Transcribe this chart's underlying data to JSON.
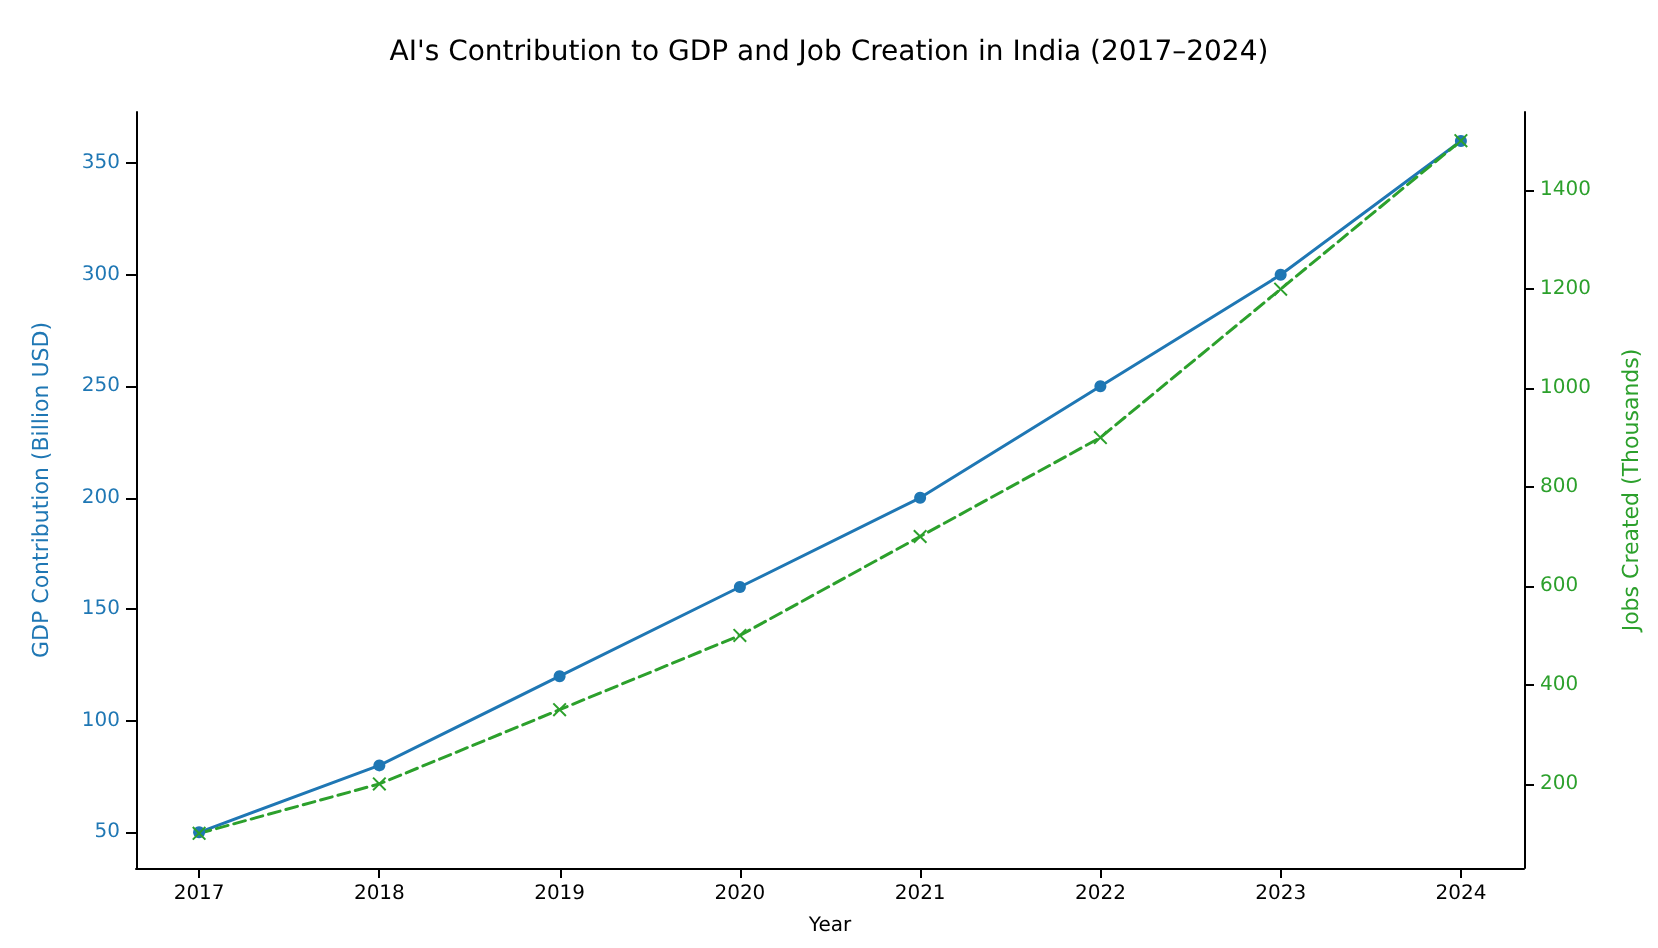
{
  "chart_data": {
    "type": "line",
    "title": "AI's Contribution to GDP and Job Creation in India (2017–2024)",
    "xlabel": "Year",
    "ylabel": "GDP Contribution (Billion USD)",
    "y2label": "Jobs Created (Thousands)",
    "x": [
      2017,
      2018,
      2019,
      2020,
      2021,
      2022,
      2023,
      2024
    ],
    "xlim": [
      2016.65,
      2024.35
    ],
    "xticks": [
      2017,
      2018,
      2019,
      2020,
      2021,
      2022,
      2023,
      2024
    ],
    "ylim": [
      34,
      373
    ],
    "yticks": [
      50,
      100,
      150,
      200,
      250,
      300,
      350
    ],
    "y2lim": [
      30,
      1558
    ],
    "y2ticks": [
      200,
      400,
      600,
      800,
      1000,
      1200,
      1400
    ],
    "grid": false,
    "series": [
      {
        "color": "#1f77b4",
        "values": [
          50,
          80,
          120,
          160,
          200,
          250,
          300,
          360
        ],
        "marker": "circle",
        "line_style": "solid"
      },
      {
        "color": "#2ca02c",
        "values": [
          100,
          200,
          350,
          500,
          700,
          900,
          1200,
          1500
        ],
        "axis": "y2",
        "marker": "cross",
        "line_style": "dashed"
      }
    ]
  }
}
